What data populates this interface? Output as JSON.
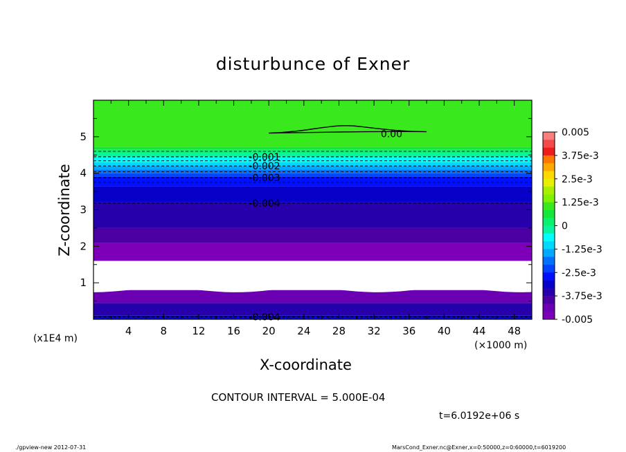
{
  "title": "disturbunce of Exner",
  "footer": {
    "left": "./gpview-new  2012-07-31",
    "right": "MarsCond_Exner.nc@Exner,x=0:50000,z=0:60000,t=6019200"
  },
  "annotations": {
    "contour_interval": "CONTOUR INTERVAL = 5.000E-04",
    "time": "t=6.0192e+06 s"
  },
  "chart_data": {
    "type": "heatmap",
    "title": "disturbunce of Exner",
    "xlabel": "X-coordinate",
    "ylabel": "Z-coordinate",
    "x_unit": "(×1000 m)",
    "y_unit": "(x1E4 m)",
    "xlim": [
      0,
      50
    ],
    "ylim": [
      0,
      6
    ],
    "x_ticks": [
      4,
      8,
      12,
      16,
      20,
      24,
      28,
      32,
      36,
      40,
      44,
      48
    ],
    "y_ticks": [
      1,
      2,
      3,
      4,
      5
    ],
    "colorbar": {
      "range": [
        -0.005,
        0.005
      ],
      "tick_labels": [
        "0.005",
        "3.75e-3",
        "2.5e-3",
        "1.25e-3",
        "0",
        "-1.25e-3",
        "-2.5e-3",
        "-3.75e-3",
        "-0.005"
      ],
      "colors": [
        "#f97f7f",
        "#f44a4a",
        "#ee1c1c",
        "#ff7700",
        "#ffa800",
        "#ffd800",
        "#e6f000",
        "#abef00",
        "#7ff200",
        "#3ae81e",
        "#12e838",
        "#08f26d",
        "#08f4a0",
        "#02fdfd",
        "#00d8ff",
        "#00a8ff",
        "#0070ff",
        "#0044ff",
        "#0010ff",
        "#0600c8",
        "#2600aa",
        "#4c00a4",
        "#6a00b2",
        "#7c00b8"
      ]
    },
    "layers": [
      {
        "z": [
          0.0,
          0.1
        ],
        "color": "#0600c8"
      },
      {
        "z": [
          0.1,
          0.45
        ],
        "color": "#2600aa"
      },
      {
        "z": [
          0.45,
          0.8
        ],
        "color": "#6a00b2",
        "top_wave": 0.06
      },
      {
        "z": [
          0.8,
          1.6
        ],
        "color": "#ffffff",
        "note": "missing"
      },
      {
        "z": [
          1.6,
          2.1
        ],
        "color": "#7c00b8"
      },
      {
        "z": [
          2.1,
          2.5
        ],
        "color": "#4c00a4"
      },
      {
        "z": [
          2.5,
          3.2
        ],
        "color": "#2600aa"
      },
      {
        "z": [
          3.2,
          3.65
        ],
        "color": "#0600c8"
      },
      {
        "z": [
          3.65,
          3.9
        ],
        "color": "#0010ff"
      },
      {
        "z": [
          3.9,
          4.0
        ],
        "color": "#0044ff"
      },
      {
        "z": [
          4.0,
          4.1
        ],
        "color": "#0070ff"
      },
      {
        "z": [
          4.1,
          4.2
        ],
        "color": "#00a8ff"
      },
      {
        "z": [
          4.2,
          4.3
        ],
        "color": "#00d8ff"
      },
      {
        "z": [
          4.3,
          4.45
        ],
        "color": "#02fdfd"
      },
      {
        "z": [
          4.45,
          4.55
        ],
        "color": "#08f4a0"
      },
      {
        "z": [
          4.55,
          4.65
        ],
        "color": "#08f26d"
      },
      {
        "z": [
          4.65,
          4.72
        ],
        "color": "#12e838"
      },
      {
        "z": [
          4.72,
          6.0
        ],
        "color": "#3ae81e"
      }
    ],
    "contours": [
      {
        "label": "0.00",
        "z": 5.1,
        "dashed": false,
        "x_range": [
          20,
          38
        ]
      },
      {
        "label": "-0.001",
        "z": 4.45,
        "dashed": true
      },
      {
        "label": "-0.002",
        "z": 4.2,
        "dashed": true
      },
      {
        "label": "-0.003",
        "z": 3.88,
        "dashed": true
      },
      {
        "label": "-0.004",
        "z": 3.18,
        "dashed": true
      },
      {
        "label": "-0.004",
        "z": 0.07,
        "dashed": true
      }
    ],
    "extra_dashed_levels": [
      4.6,
      4.34,
      4.04,
      3.75
    ]
  }
}
